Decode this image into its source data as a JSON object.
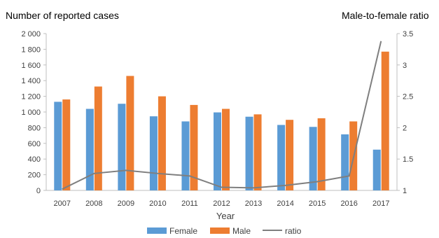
{
  "chart_data": {
    "type": "bar",
    "left_axis_title": "Number of reported cases",
    "right_axis_title": "Male-to-female ratio",
    "xlabel": "Year",
    "categories": [
      "2007",
      "2008",
      "2009",
      "2010",
      "2011",
      "2012",
      "2013",
      "2014",
      "2015",
      "2016",
      "2017"
    ],
    "series": [
      {
        "name": "Female",
        "type": "bar",
        "axis": "left",
        "color": "#5b9bd5",
        "values": [
          1130,
          1040,
          1105,
          945,
          880,
          995,
          940,
          835,
          810,
          715,
          520
        ]
      },
      {
        "name": "Male",
        "type": "bar",
        "axis": "left",
        "color": "#ed7d31",
        "values": [
          1160,
          1325,
          1460,
          1200,
          1090,
          1040,
          970,
          900,
          920,
          880,
          1770
        ]
      },
      {
        "name": "ratio",
        "type": "line",
        "axis": "right",
        "color": "#7f7f7f",
        "values": [
          1.02,
          1.27,
          1.32,
          1.27,
          1.23,
          1.05,
          1.04,
          1.08,
          1.14,
          1.23,
          3.38
        ]
      }
    ],
    "left_ylim": [
      0,
      2000
    ],
    "left_ticks": [
      "0",
      "200",
      "400",
      "600",
      "800",
      "1 000",
      "1 200",
      "1 400",
      "1 600",
      "1 800",
      "2 000"
    ],
    "right_ylim": [
      1,
      3.5
    ],
    "right_ticks": [
      "1",
      "1.5",
      "2",
      "2.5",
      "3",
      "3.5"
    ],
    "grid": false,
    "legend_position": "bottom"
  }
}
